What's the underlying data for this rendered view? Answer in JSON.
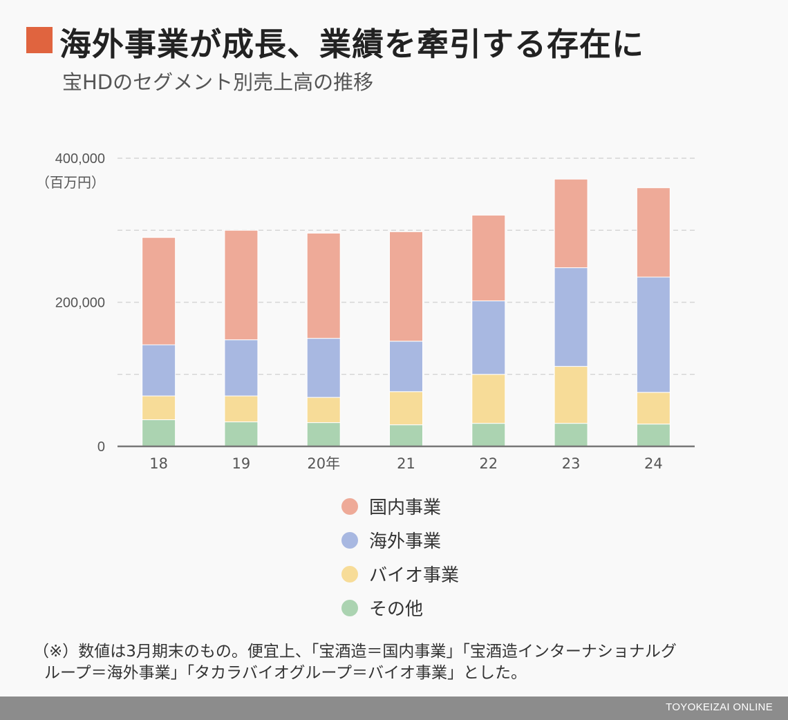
{
  "header": {
    "title": "海外事業が成長、業績を牽引する存在に",
    "subtitle": "宝HDのセグメント別売上高の推移"
  },
  "chart_data": {
    "type": "bar",
    "stacked": true,
    "categories": [
      "18",
      "19",
      "20年",
      "21",
      "22",
      "23",
      "24"
    ],
    "series": [
      {
        "name": "その他",
        "color": "#abd3b1",
        "values": [
          37000,
          34000,
          33000,
          30000,
          32000,
          32000,
          31000
        ]
      },
      {
        "name": "バイオ事業",
        "color": "#f7dc98",
        "values": [
          33000,
          36000,
          35000,
          46000,
          68000,
          79000,
          44000
        ]
      },
      {
        "name": "海外事業",
        "color": "#a8b8e1",
        "values": [
          71000,
          78000,
          82000,
          70000,
          102000,
          137000,
          160000
        ]
      },
      {
        "name": "国内事業",
        "color": "#eeaa98",
        "values": [
          149000,
          152000,
          146000,
          152000,
          119000,
          123000,
          124000
        ]
      }
    ],
    "ylim": [
      0,
      400000
    ],
    "yticks": [
      0,
      200000,
      400000
    ],
    "ytick_labels": [
      "0",
      "200,000",
      "400,000"
    ],
    "grid_values": [
      100000,
      200000,
      300000,
      400000
    ],
    "yunit": "（百万円）",
    "grid": true,
    "legend_position": "bottom"
  },
  "legend": {
    "items": [
      {
        "label": "国内事業",
        "color": "#eeaa98"
      },
      {
        "label": "海外事業",
        "color": "#a8b8e1"
      },
      {
        "label": "バイオ事業",
        "color": "#f7dc98"
      },
      {
        "label": "その他",
        "color": "#abd3b1"
      }
    ]
  },
  "note": {
    "line1": "（※）数値は3月期末のもの。便宜上、「宝酒造＝国内事業」「宝酒造インターナショナルグ",
    "line2": "ループ＝海外事業」「タカラバイオグループ＝バイオ事業」とした。"
  },
  "footer": {
    "brand": "TOYOKEIZAI ONLINE"
  }
}
